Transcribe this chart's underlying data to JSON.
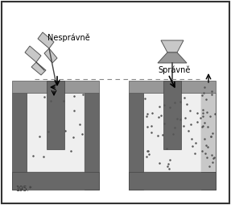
{
  "label_wrong": "Nesprávně",
  "label_correct": "Správně",
  "caption": "195.*",
  "bg_color": "#ffffff",
  "border_color": "#000000",
  "dark_gray": "#686868",
  "medium_gray": "#989898",
  "light_gray": "#c8c8c8",
  "very_light_gray": "#efefef",
  "particle_color": "#555555",
  "dashed_color": "#888888"
}
